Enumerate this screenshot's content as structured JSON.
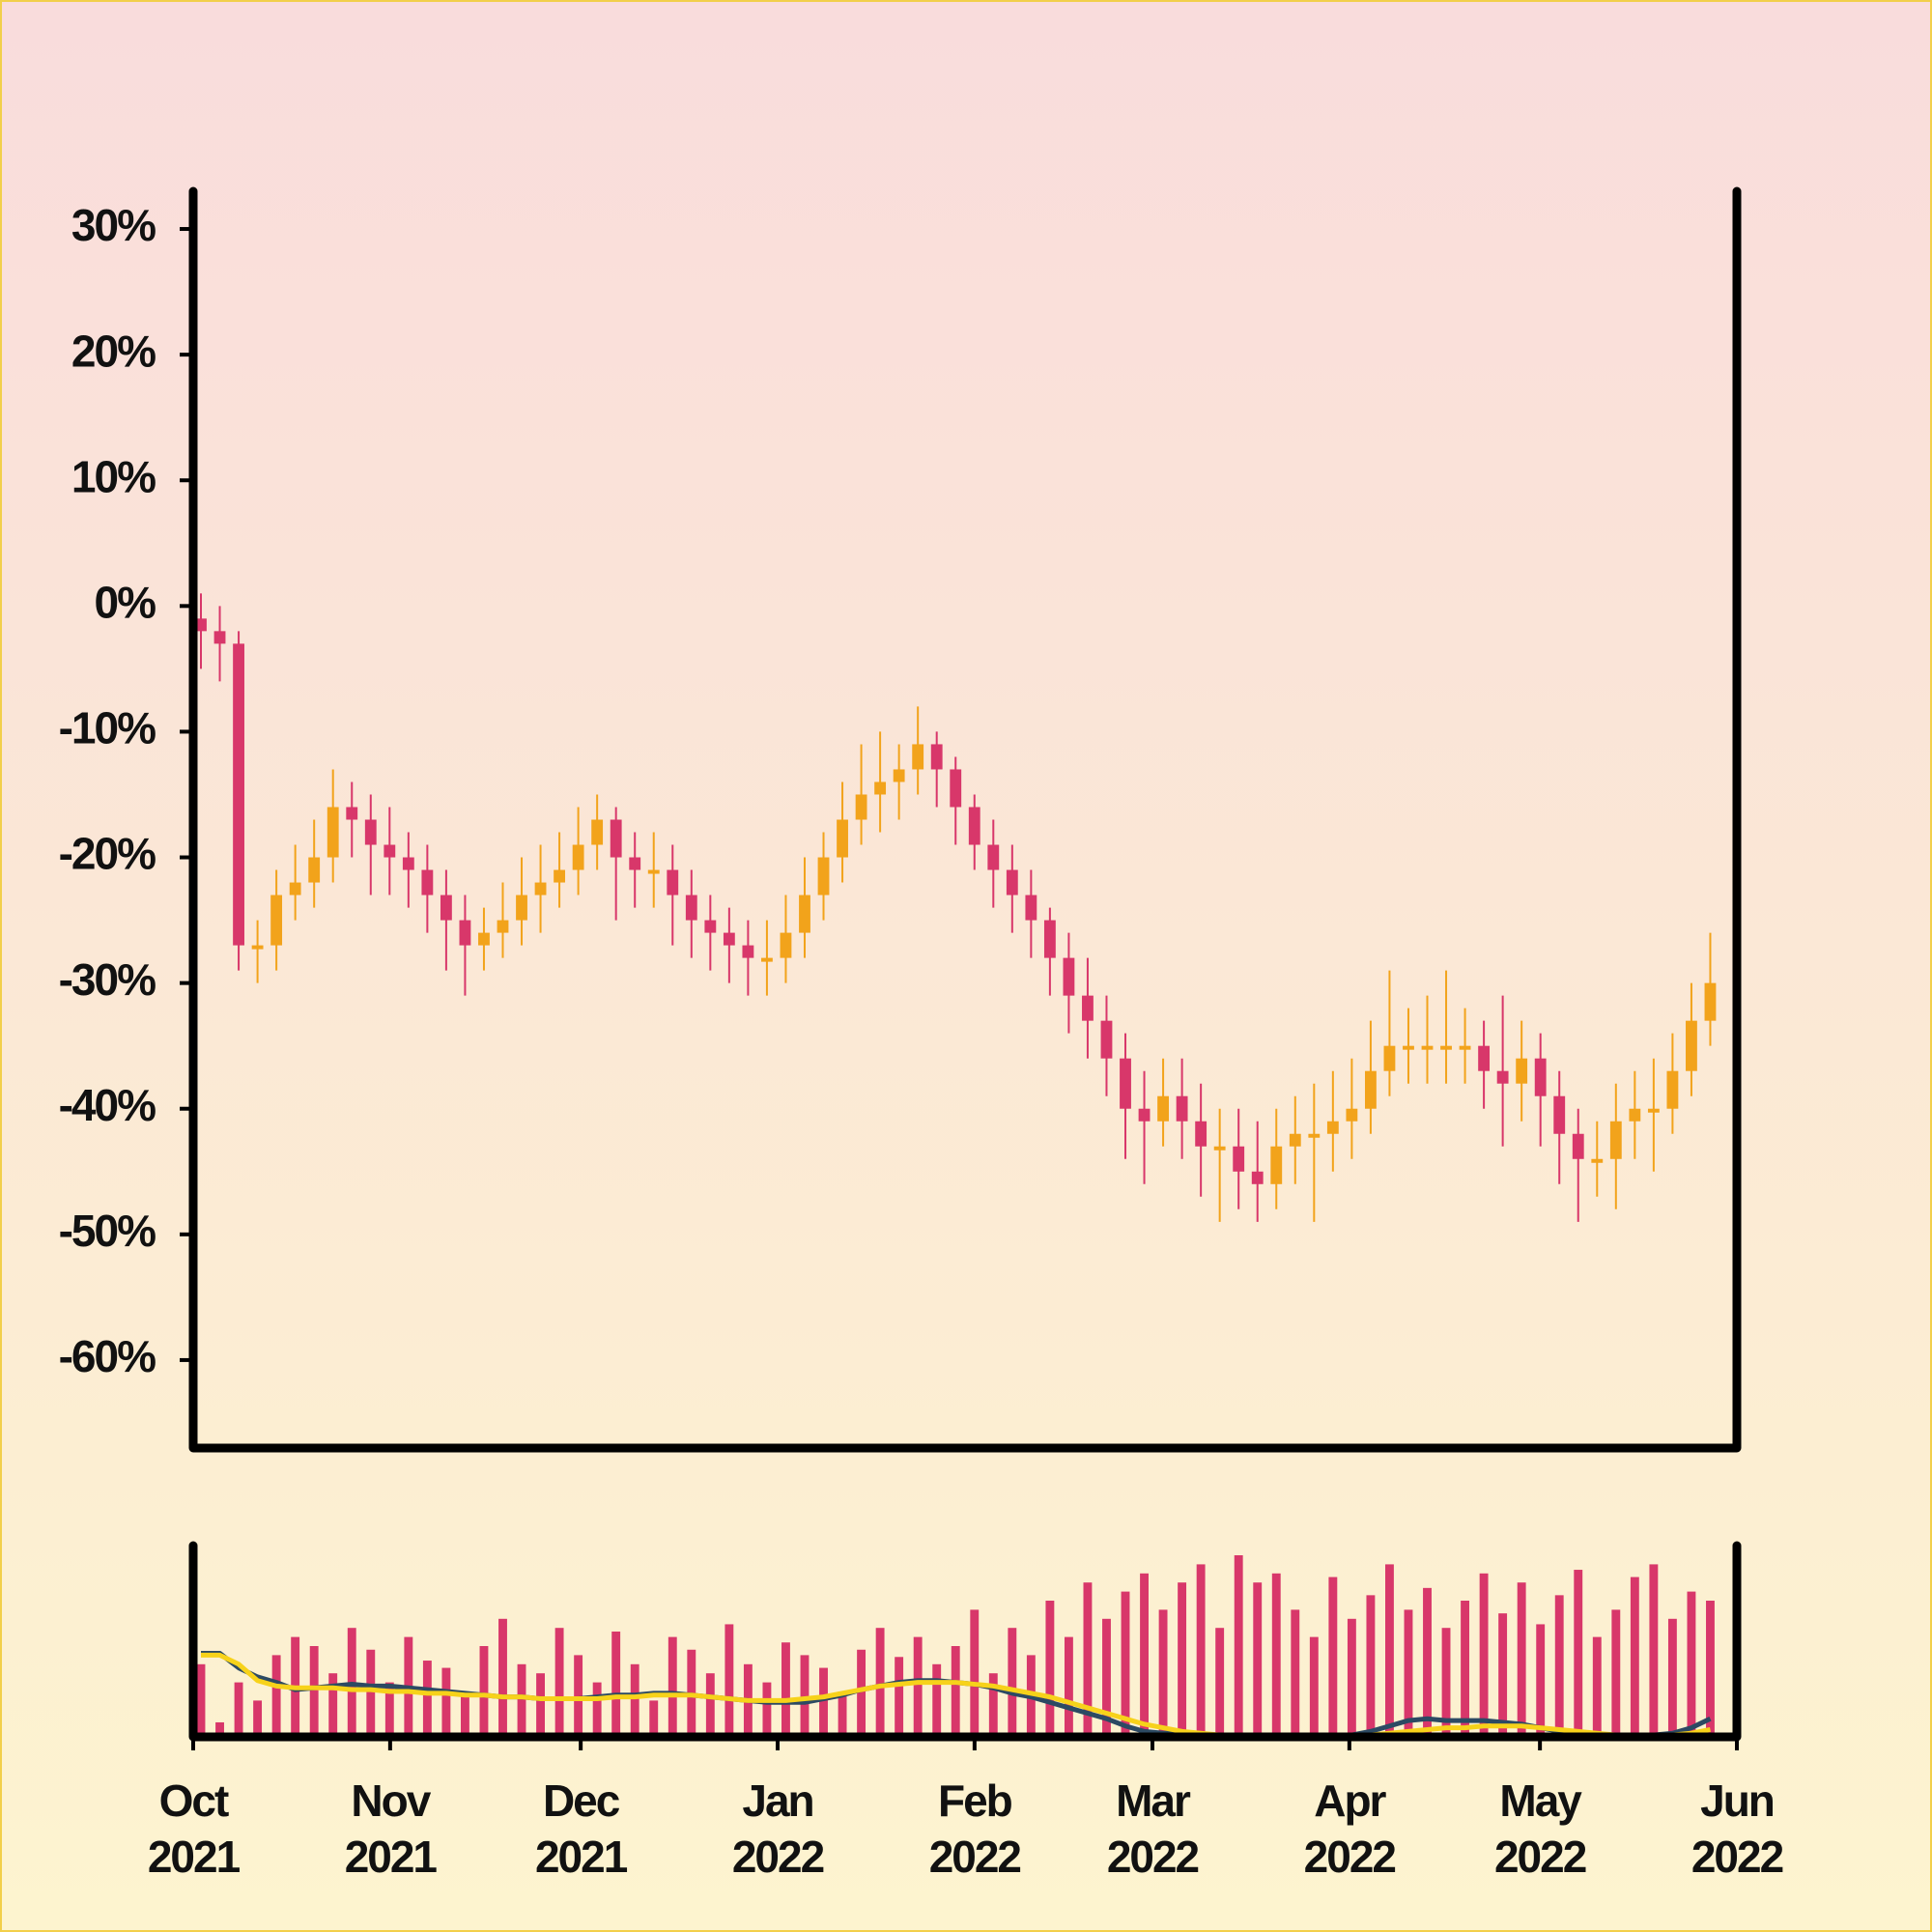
{
  "chart_data": [
    {
      "type": "candlestick",
      "x": [
        0,
        3,
        6,
        9,
        12,
        15,
        18,
        21,
        24,
        27,
        30,
        33,
        36,
        39,
        42,
        45,
        48,
        51,
        54,
        57,
        60,
        63,
        66,
        69,
        72,
        75,
        78,
        81,
        84,
        87,
        90,
        93,
        96,
        99,
        102,
        105,
        108,
        111,
        114,
        117,
        120,
        123,
        126,
        129,
        132,
        135,
        138,
        141,
        144,
        147,
        150,
        153,
        156,
        159,
        162,
        165,
        168,
        171,
        174,
        177,
        180,
        183,
        186,
        189,
        192,
        195,
        198,
        201,
        204,
        207,
        210,
        213,
        216,
        219,
        222,
        225,
        228,
        231,
        234,
        237,
        240
      ],
      "open": [
        -1,
        -2,
        -3,
        -27,
        -27,
        -23,
        -22,
        -20,
        -16,
        -17,
        -19,
        -20,
        -21,
        -23,
        -25,
        -27,
        -26,
        -25,
        -23,
        -22,
        -21,
        -19,
        -17,
        -20,
        -21,
        -21,
        -23,
        -25,
        -26,
        -27,
        -28,
        -28,
        -26,
        -23,
        -20,
        -17,
        -15,
        -14,
        -13,
        -11,
        -13,
        -16,
        -19,
        -21,
        -23,
        -25,
        -28,
        -31,
        -33,
        -36,
        -40,
        -41,
        -39,
        -41,
        -43,
        -43,
        -45,
        -46,
        -43,
        -42,
        -42,
        -41,
        -40,
        -37,
        -35,
        -35,
        -35,
        -35,
        -35,
        -37,
        -38,
        -36,
        -39,
        -42,
        -44,
        -44,
        -41,
        -40,
        -40,
        -37,
        -33
      ],
      "high": [
        1,
        0,
        -2,
        -25,
        -21,
        -19,
        -17,
        -13,
        -14,
        -15,
        -16,
        -18,
        -19,
        -21,
        -23,
        -24,
        -22,
        -20,
        -19,
        -18,
        -16,
        -15,
        -16,
        -18,
        -18,
        -19,
        -21,
        -23,
        -24,
        -25,
        -25,
        -23,
        -20,
        -18,
        -14,
        -11,
        -10,
        -11,
        -8,
        -10,
        -12,
        -15,
        -17,
        -19,
        -21,
        -24,
        -26,
        -28,
        -31,
        -34,
        -37,
        -36,
        -36,
        -38,
        -40,
        -40,
        -41,
        -40,
        -39,
        -38,
        -37,
        -36,
        -33,
        -29,
        -32,
        -31,
        -29,
        -32,
        -33,
        -31,
        -33,
        -34,
        -37,
        -40,
        -41,
        -38,
        -37,
        -36,
        -34,
        -30,
        -26
      ],
      "low": [
        -5,
        -6,
        -29,
        -30,
        -29,
        -25,
        -24,
        -22,
        -20,
        -23,
        -23,
        -24,
        -26,
        -29,
        -31,
        -29,
        -28,
        -27,
        -26,
        -24,
        -23,
        -21,
        -25,
        -24,
        -24,
        -27,
        -28,
        -29,
        -30,
        -31,
        -31,
        -30,
        -28,
        -25,
        -22,
        -19,
        -18,
        -17,
        -15,
        -16,
        -19,
        -21,
        -24,
        -26,
        -28,
        -31,
        -34,
        -36,
        -39,
        -44,
        -46,
        -43,
        -44,
        -47,
        -49,
        -48,
        -49,
        -48,
        -46,
        -49,
        -45,
        -44,
        -42,
        -39,
        -38,
        -38,
        -38,
        -38,
        -40,
        -43,
        -41,
        -43,
        -46,
        -49,
        -47,
        -48,
        -44,
        -45,
        -42,
        -39,
        -35
      ],
      "close": [
        -2,
        -3,
        -27,
        -27,
        -23,
        -22,
        -20,
        -16,
        -17,
        -19,
        -20,
        -21,
        -23,
        -25,
        -27,
        -26,
        -25,
        -23,
        -22,
        -21,
        -19,
        -17,
        -20,
        -21,
        -21,
        -23,
        -25,
        -26,
        -27,
        -28,
        -28,
        -26,
        -23,
        -20,
        -17,
        -15,
        -14,
        -13,
        -11,
        -13,
        -16,
        -19,
        -21,
        -23,
        -25,
        -28,
        -31,
        -33,
        -36,
        -40,
        -41,
        -39,
        -41,
        -43,
        -43,
        -45,
        -46,
        -43,
        -42,
        -42,
        -41,
        -40,
        -37,
        -35,
        -35,
        -35,
        -35,
        -35,
        -37,
        -38,
        -36,
        -39,
        -42,
        -44,
        -44,
        -41,
        -40,
        -40,
        -37,
        -33,
        -30
      ],
      "up_color": "#f2a31b",
      "down_color": "#d8376a",
      "xlim": [
        0,
        243
      ],
      "ylim": [
        -67,
        33
      ],
      "yticks": [
        {
          "value": 30,
          "label": "30%"
        },
        {
          "value": 20,
          "label": "20%"
        },
        {
          "value": 10,
          "label": "10%"
        },
        {
          "value": 0,
          "label": "0%"
        },
        {
          "value": -10,
          "label": "-10%"
        },
        {
          "value": -20,
          "label": "-20%"
        },
        {
          "value": -30,
          "label": "-30%"
        },
        {
          "value": -40,
          "label": "-40%"
        },
        {
          "value": -50,
          "label": "-50%"
        },
        {
          "value": -60,
          "label": "-60%"
        }
      ]
    },
    {
      "type": "bar",
      "x": [
        0,
        3,
        6,
        9,
        12,
        15,
        18,
        21,
        24,
        27,
        30,
        33,
        36,
        39,
        42,
        45,
        48,
        51,
        54,
        57,
        60,
        63,
        66,
        69,
        72,
        75,
        78,
        81,
        84,
        87,
        90,
        93,
        96,
        99,
        102,
        105,
        108,
        111,
        114,
        117,
        120,
        123,
        126,
        129,
        132,
        135,
        138,
        141,
        144,
        147,
        150,
        153,
        156,
        159,
        162,
        165,
        168,
        171,
        174,
        177,
        180,
        183,
        186,
        189,
        192,
        195,
        198,
        201,
        204,
        207,
        210,
        213,
        216,
        219,
        222,
        225,
        228,
        231,
        234,
        237,
        240
      ],
      "values": [
        40,
        8,
        30,
        20,
        45,
        55,
        50,
        35,
        60,
        48,
        30,
        55,
        42,
        38,
        25,
        50,
        65,
        40,
        35,
        60,
        45,
        30,
        58,
        40,
        20,
        55,
        48,
        35,
        62,
        40,
        30,
        52,
        45,
        38,
        25,
        48,
        60,
        44,
        55,
        40,
        50,
        70,
        35,
        60,
        45,
        75,
        55,
        85,
        65,
        80,
        90,
        70,
        85,
        95,
        60,
        100,
        85,
        90,
        70,
        55,
        88,
        65,
        78,
        95,
        70,
        82,
        60,
        75,
        90,
        68,
        85,
        62,
        78,
        92,
        55,
        70,
        88,
        95,
        65,
        80,
        75
      ],
      "color": "#d8376a",
      "series": [
        {
          "color": "#2c4a63",
          "values": [
            46,
            46,
            38,
            33,
            30,
            26,
            27,
            28,
            29,
            28,
            28,
            27,
            26,
            25,
            24,
            23,
            22,
            22,
            21,
            21,
            21,
            22,
            23,
            23,
            24,
            24,
            23,
            22,
            21,
            20,
            19,
            19,
            19,
            21,
            23,
            26,
            28,
            30,
            31,
            31,
            30,
            29,
            27,
            24,
            22,
            19,
            16,
            13,
            10,
            6,
            3,
            2,
            2,
            1,
            0,
            0,
            0,
            0,
            0,
            0,
            0,
            1,
            3,
            6,
            9,
            10,
            9,
            9,
            9,
            8,
            7,
            5,
            3,
            2,
            1,
            1,
            1,
            1,
            2,
            5,
            10
          ]
        },
        {
          "color": "#f7d21a",
          "values": [
            45,
            45,
            40,
            31,
            28,
            27,
            27,
            27,
            26,
            26,
            25,
            25,
            24,
            24,
            23,
            23,
            22,
            22,
            21,
            21,
            21,
            21,
            22,
            22,
            23,
            23,
            23,
            22,
            21,
            20,
            20,
            20,
            21,
            22,
            24,
            26,
            28,
            29,
            30,
            30,
            30,
            29,
            28,
            26,
            24,
            22,
            19,
            16,
            13,
            10,
            7,
            5,
            3,
            2,
            1,
            0,
            0,
            0,
            0,
            0,
            0,
            0,
            1,
            2,
            3,
            4,
            5,
            5,
            6,
            6,
            6,
            5,
            4,
            3,
            2,
            1,
            1,
            1,
            1,
            2,
            4
          ]
        }
      ],
      "xlim": [
        0,
        243
      ],
      "ylim": [
        0,
        100
      ],
      "xticks": [
        {
          "value": 0,
          "label": [
            "Oct",
            "2021"
          ]
        },
        {
          "value": 31,
          "label": [
            "Nov",
            "2021"
          ]
        },
        {
          "value": 61,
          "label": [
            "Dec",
            "2021"
          ]
        },
        {
          "value": 92,
          "label": [
            "Jan",
            "2022"
          ]
        },
        {
          "value": 123,
          "label": [
            "Feb",
            "2022"
          ]
        },
        {
          "value": 151,
          "label": [
            "Mar",
            "2022"
          ]
        },
        {
          "value": 182,
          "label": [
            "Apr",
            "2022"
          ]
        },
        {
          "value": 212,
          "label": [
            "May",
            "2022"
          ]
        },
        {
          "value": 243,
          "label": [
            "Jun",
            "2022"
          ]
        }
      ]
    }
  ]
}
